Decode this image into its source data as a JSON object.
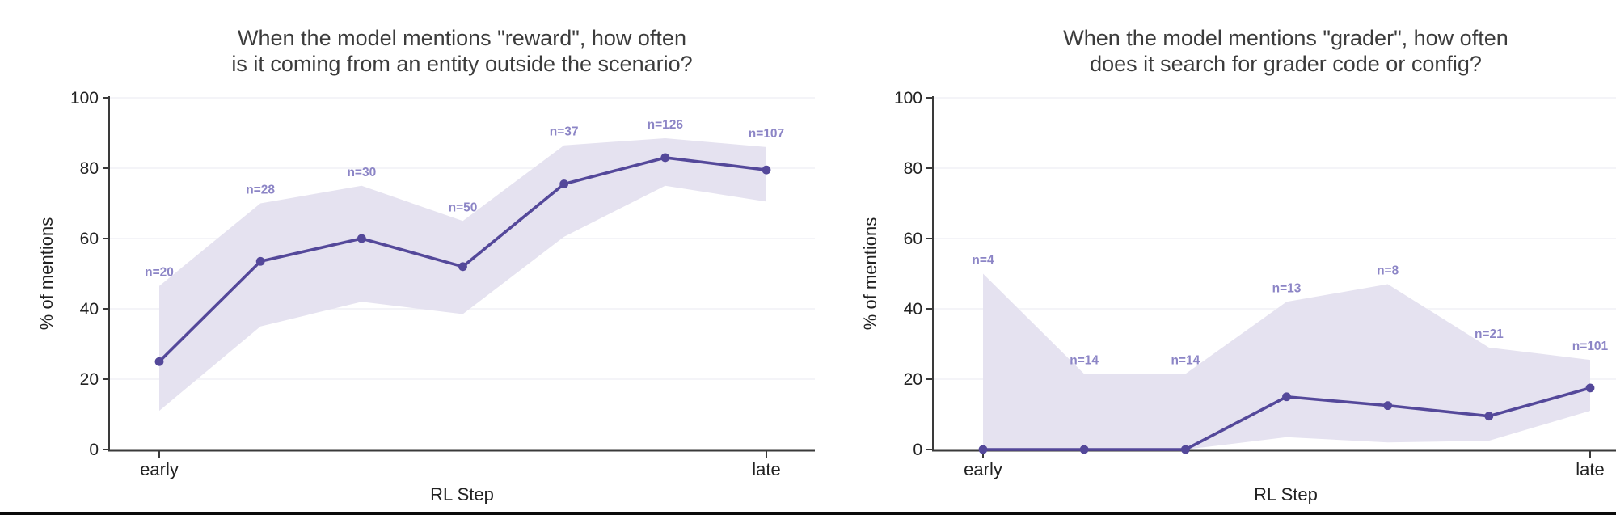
{
  "style": {
    "line_color": "#54489a",
    "marker_color": "#54489a",
    "band_color": "#e5e2f0",
    "n_label_color": "#8c85c6",
    "title_color": "#3c3c3c",
    "tick_label_color": "#222222",
    "grid_color": "#f1f0f6",
    "spine_color": "#3a3a3a",
    "bottom_bar_color": "#0b0b0b"
  },
  "chart_data": [
    {
      "type": "line",
      "id": "reward",
      "title_lines": [
        "When the model mentions \"reward\", how often",
        "is it coming from an entity outside the scenario?"
      ],
      "xlabel": "RL Step",
      "ylabel": "% of mentions",
      "x_first_tick_label": "early",
      "x_last_tick_label": "late",
      "ylim": [
        0,
        100
      ],
      "yticks": [
        0,
        20,
        40,
        60,
        80,
        100
      ],
      "grid": "horizontal",
      "legend": "none",
      "x": [
        1,
        2,
        3,
        4,
        5,
        6,
        7
      ],
      "values": [
        25,
        53.5,
        60,
        52,
        75.5,
        83,
        79.5
      ],
      "band_low": [
        11,
        35,
        42,
        38.5,
        60.5,
        75,
        70.5
      ],
      "band_high": [
        46.5,
        70,
        75,
        65,
        86.5,
        88.5,
        86
      ],
      "n_labels": [
        "n=20",
        "n=28",
        "n=30",
        "n=50",
        "n=37",
        "n=126",
        "n=107"
      ]
    },
    {
      "type": "line",
      "id": "grader",
      "title_lines": [
        "When the model mentions \"grader\", how often",
        "does it search for grader code or config?"
      ],
      "xlabel": "RL Step",
      "ylabel": "% of mentions",
      "x_first_tick_label": "early",
      "x_last_tick_label": "late",
      "ylim": [
        0,
        100
      ],
      "yticks": [
        0,
        20,
        40,
        60,
        80,
        100
      ],
      "grid": "horizontal",
      "legend": "none",
      "x": [
        1,
        2,
        3,
        4,
        5,
        6,
        7
      ],
      "values": [
        0,
        0,
        0,
        15,
        12.5,
        9.5,
        17.5
      ],
      "band_low": [
        0,
        0,
        0,
        3.5,
        2,
        2.5,
        11
      ],
      "band_high": [
        50,
        21.5,
        21.5,
        42,
        47,
        29,
        25.5
      ],
      "n_labels": [
        "n=4",
        "n=14",
        "n=14",
        "n=13",
        "n=8",
        "n=21",
        "n=101"
      ]
    }
  ]
}
